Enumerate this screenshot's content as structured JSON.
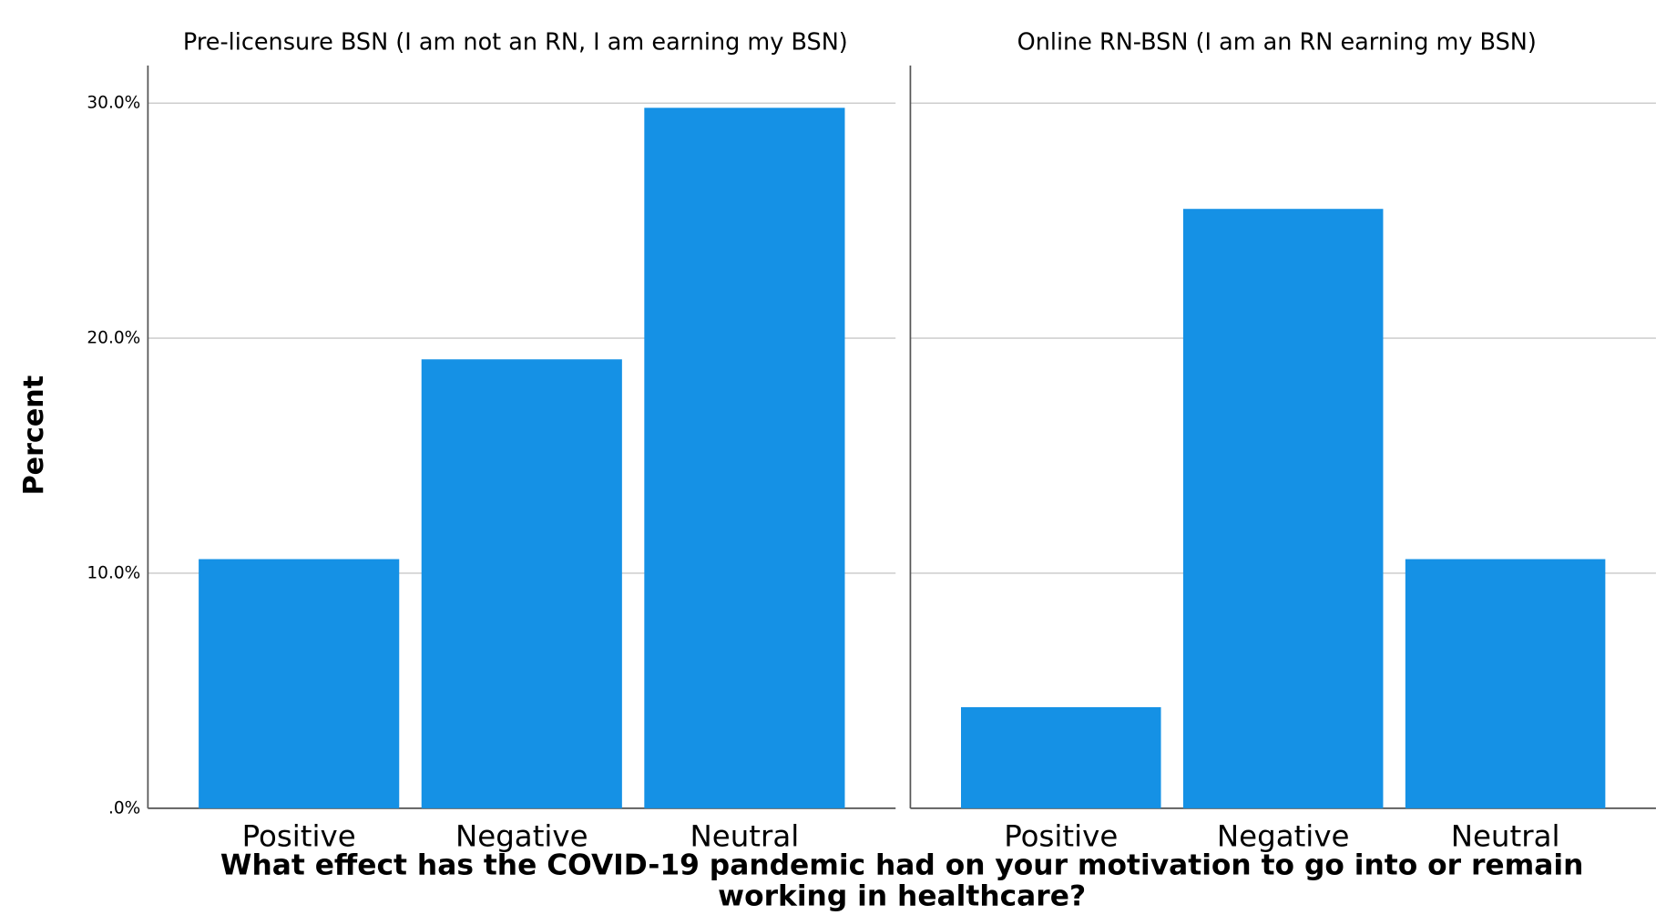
{
  "chart_data": {
    "type": "bar",
    "y_label": "Percent",
    "x_label": [
      "What effect has the COVID-19 pandemic had on your motivation to go into or remain",
      "working in healthcare?"
    ],
    "categories": [
      "Positive",
      "Negative",
      "Neutral"
    ],
    "color": "#1591e5",
    "grid": true,
    "ylim": [
      0,
      31.6
    ],
    "yticks": [
      {
        "value": 0,
        "label": ".0%"
      },
      {
        "value": 10,
        "label": "10.0%"
      },
      {
        "value": 20,
        "label": "20.0%"
      },
      {
        "value": 30,
        "label": "30.0%"
      }
    ],
    "panels": [
      {
        "title": "Pre-licensure BSN (I am not an RN, I am earning my BSN)",
        "values": [
          10.6,
          19.1,
          29.8
        ]
      },
      {
        "title": "Online RN-BSN (I am an RN earning my BSN)",
        "values": [
          4.3,
          25.5,
          10.6
        ]
      }
    ]
  }
}
